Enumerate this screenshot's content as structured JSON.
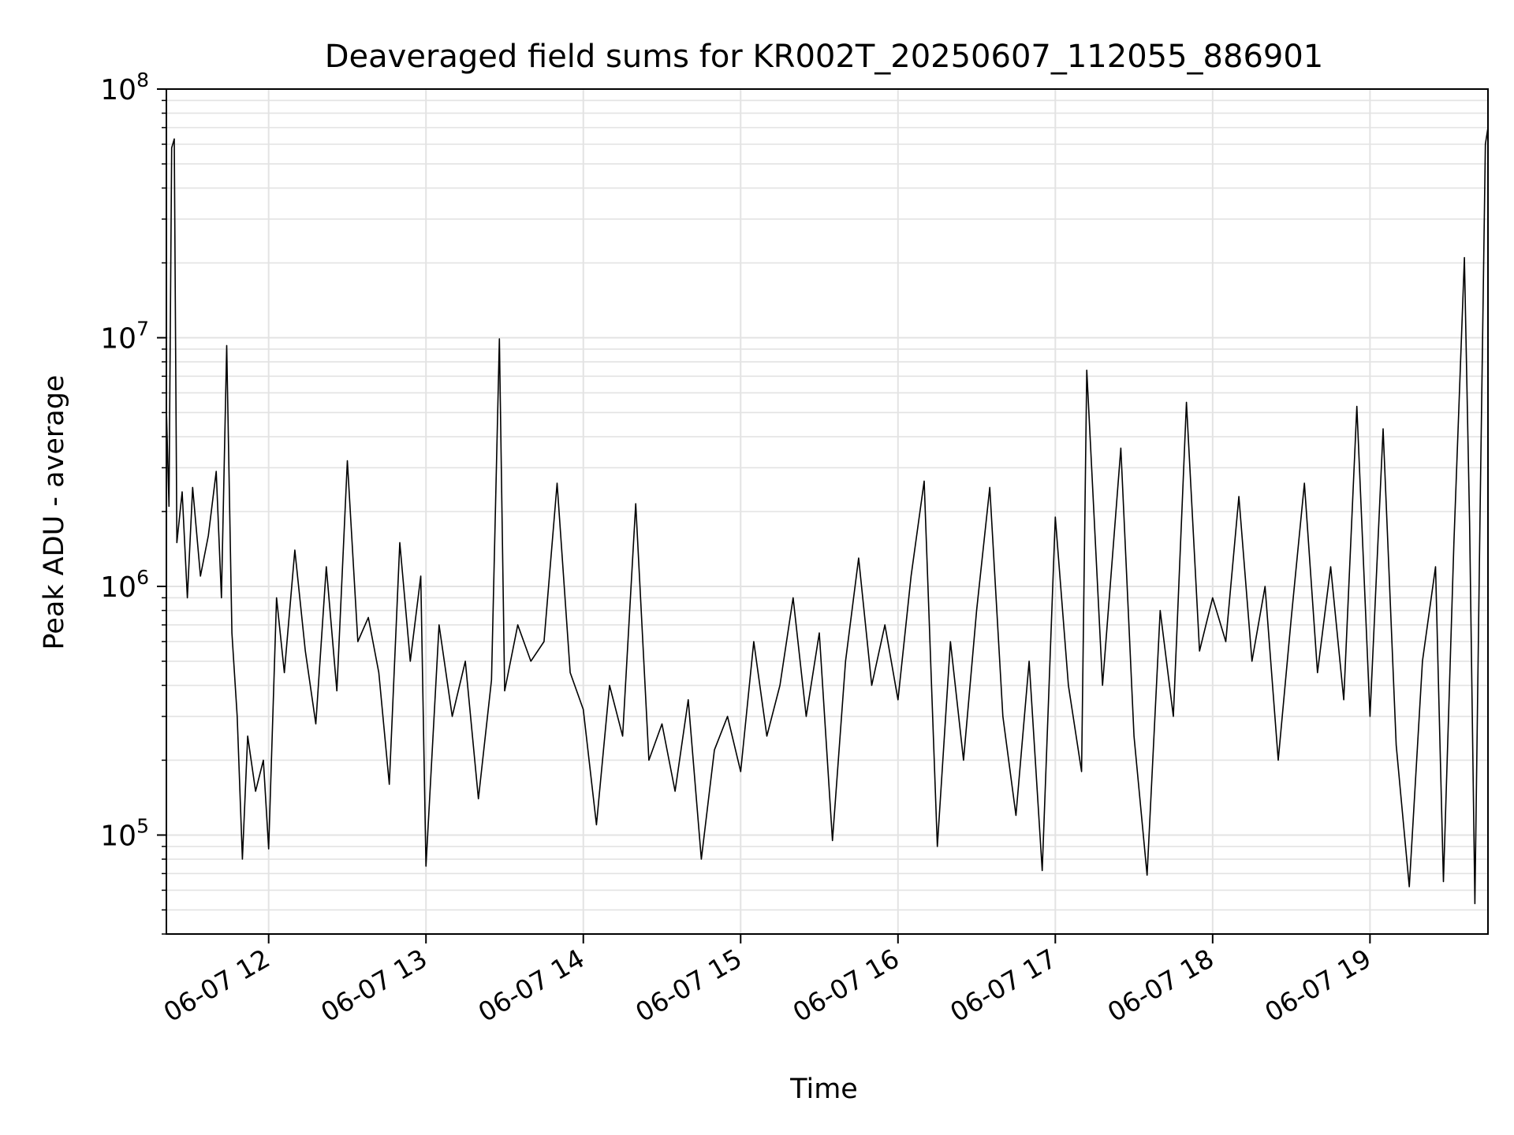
{
  "chart_data": {
    "type": "line",
    "title": "Deaveraged field sums for KR002T_20250607_112055_886901",
    "xlabel": "Time",
    "ylabel": "Peak ADU - average",
    "yscale": "log",
    "ylim": [
      40000,
      100000000
    ],
    "xlim": [
      "2025-06-07T11:21",
      "2025-06-07T19:45"
    ],
    "grid": true,
    "line_color": "#000000",
    "x_ticks": [
      {
        "value": "2025-06-07T12:00",
        "label": "06-07 12"
      },
      {
        "value": "2025-06-07T13:00",
        "label": "06-07 13"
      },
      {
        "value": "2025-06-07T14:00",
        "label": "06-07 14"
      },
      {
        "value": "2025-06-07T15:00",
        "label": "06-07 15"
      },
      {
        "value": "2025-06-07T16:00",
        "label": "06-07 16"
      },
      {
        "value": "2025-06-07T17:00",
        "label": "06-07 17"
      },
      {
        "value": "2025-06-07T18:00",
        "label": "06-07 18"
      },
      {
        "value": "2025-06-07T19:00",
        "label": "06-07 19"
      }
    ],
    "y_ticks": [
      {
        "value": 100000,
        "base": "10",
        "exp": "5"
      },
      {
        "value": 1000000,
        "base": "10",
        "exp": "6"
      },
      {
        "value": 10000000,
        "base": "10",
        "exp": "7"
      },
      {
        "value": 100000000,
        "base": "10",
        "exp": "8"
      }
    ],
    "series": [
      {
        "points": [
          [
            "2025-06-07T11:21",
            5200000
          ],
          [
            "2025-06-07T11:22",
            2100000
          ],
          [
            "2025-06-07T11:23",
            58000000
          ],
          [
            "2025-06-07T11:24",
            63000000
          ],
          [
            "2025-06-07T11:25",
            1500000
          ],
          [
            "2025-06-07T11:27",
            2400000
          ],
          [
            "2025-06-07T11:29",
            900000
          ],
          [
            "2025-06-07T11:31",
            2500000
          ],
          [
            "2025-06-07T11:34",
            1100000
          ],
          [
            "2025-06-07T11:37",
            1600000
          ],
          [
            "2025-06-07T11:40",
            2900000
          ],
          [
            "2025-06-07T11:42",
            900000
          ],
          [
            "2025-06-07T11:44",
            9300000
          ],
          [
            "2025-06-07T11:46",
            650000
          ],
          [
            "2025-06-07T11:48",
            300000
          ],
          [
            "2025-06-07T11:50",
            80000
          ],
          [
            "2025-06-07T11:52",
            250000
          ],
          [
            "2025-06-07T11:55",
            150000
          ],
          [
            "2025-06-07T11:58",
            200000
          ],
          [
            "2025-06-07T12:00",
            88000
          ],
          [
            "2025-06-07T12:03",
            900000
          ],
          [
            "2025-06-07T12:06",
            450000
          ],
          [
            "2025-06-07T12:10",
            1400000
          ],
          [
            "2025-06-07T12:14",
            550000
          ],
          [
            "2025-06-07T12:18",
            280000
          ],
          [
            "2025-06-07T12:22",
            1200000
          ],
          [
            "2025-06-07T12:26",
            380000
          ],
          [
            "2025-06-07T12:30",
            3200000
          ],
          [
            "2025-06-07T12:34",
            600000
          ],
          [
            "2025-06-07T12:38",
            750000
          ],
          [
            "2025-06-07T12:42",
            450000
          ],
          [
            "2025-06-07T12:46",
            160000
          ],
          [
            "2025-06-07T12:50",
            1500000
          ],
          [
            "2025-06-07T12:54",
            500000
          ],
          [
            "2025-06-07T12:58",
            1100000
          ],
          [
            "2025-06-07T13:00",
            75000
          ],
          [
            "2025-06-07T13:05",
            700000
          ],
          [
            "2025-06-07T13:10",
            300000
          ],
          [
            "2025-06-07T13:15",
            500000
          ],
          [
            "2025-06-07T13:20",
            140000
          ],
          [
            "2025-06-07T13:25",
            420000
          ],
          [
            "2025-06-07T13:28",
            9900000
          ],
          [
            "2025-06-07T13:30",
            380000
          ],
          [
            "2025-06-07T13:35",
            700000
          ],
          [
            "2025-06-07T13:40",
            500000
          ],
          [
            "2025-06-07T13:45",
            600000
          ],
          [
            "2025-06-07T13:50",
            2600000
          ],
          [
            "2025-06-07T13:55",
            450000
          ],
          [
            "2025-06-07T14:00",
            320000
          ],
          [
            "2025-06-07T14:05",
            110000
          ],
          [
            "2025-06-07T14:10",
            400000
          ],
          [
            "2025-06-07T14:15",
            250000
          ],
          [
            "2025-06-07T14:20",
            2150000
          ],
          [
            "2025-06-07T14:25",
            200000
          ],
          [
            "2025-06-07T14:30",
            280000
          ],
          [
            "2025-06-07T14:35",
            150000
          ],
          [
            "2025-06-07T14:40",
            350000
          ],
          [
            "2025-06-07T14:45",
            80000
          ],
          [
            "2025-06-07T14:50",
            220000
          ],
          [
            "2025-06-07T14:55",
            300000
          ],
          [
            "2025-06-07T15:00",
            180000
          ],
          [
            "2025-06-07T15:05",
            600000
          ],
          [
            "2025-06-07T15:10",
            250000
          ],
          [
            "2025-06-07T15:15",
            400000
          ],
          [
            "2025-06-07T15:20",
            900000
          ],
          [
            "2025-06-07T15:25",
            300000
          ],
          [
            "2025-06-07T15:30",
            650000
          ],
          [
            "2025-06-07T15:35",
            95000
          ],
          [
            "2025-06-07T15:40",
            500000
          ],
          [
            "2025-06-07T15:45",
            1300000
          ],
          [
            "2025-06-07T15:50",
            400000
          ],
          [
            "2025-06-07T15:55",
            700000
          ],
          [
            "2025-06-07T16:00",
            350000
          ],
          [
            "2025-06-07T16:05",
            1100000
          ],
          [
            "2025-06-07T16:10",
            2650000
          ],
          [
            "2025-06-07T16:15",
            90000
          ],
          [
            "2025-06-07T16:20",
            600000
          ],
          [
            "2025-06-07T16:25",
            200000
          ],
          [
            "2025-06-07T16:30",
            800000
          ],
          [
            "2025-06-07T16:35",
            2500000
          ],
          [
            "2025-06-07T16:40",
            300000
          ],
          [
            "2025-06-07T16:45",
            120000
          ],
          [
            "2025-06-07T16:50",
            500000
          ],
          [
            "2025-06-07T16:55",
            72000
          ],
          [
            "2025-06-07T17:00",
            1900000
          ],
          [
            "2025-06-07T17:05",
            400000
          ],
          [
            "2025-06-07T17:10",
            180000
          ],
          [
            "2025-06-07T17:12",
            7400000
          ],
          [
            "2025-06-07T17:18",
            400000
          ],
          [
            "2025-06-07T17:25",
            3600000
          ],
          [
            "2025-06-07T17:30",
            250000
          ],
          [
            "2025-06-07T17:35",
            69000
          ],
          [
            "2025-06-07T17:40",
            800000
          ],
          [
            "2025-06-07T17:45",
            300000
          ],
          [
            "2025-06-07T17:50",
            5500000
          ],
          [
            "2025-06-07T17:55",
            550000
          ],
          [
            "2025-06-07T18:00",
            900000
          ],
          [
            "2025-06-07T18:05",
            600000
          ],
          [
            "2025-06-07T18:10",
            2300000
          ],
          [
            "2025-06-07T18:15",
            500000
          ],
          [
            "2025-06-07T18:20",
            1000000
          ],
          [
            "2025-06-07T18:25",
            200000
          ],
          [
            "2025-06-07T18:30",
            750000
          ],
          [
            "2025-06-07T18:35",
            2600000
          ],
          [
            "2025-06-07T18:40",
            450000
          ],
          [
            "2025-06-07T18:45",
            1200000
          ],
          [
            "2025-06-07T18:50",
            350000
          ],
          [
            "2025-06-07T18:55",
            5300000
          ],
          [
            "2025-06-07T19:00",
            300000
          ],
          [
            "2025-06-07T19:05",
            4300000
          ],
          [
            "2025-06-07T19:10",
            230000
          ],
          [
            "2025-06-07T19:15",
            62000
          ],
          [
            "2025-06-07T19:20",
            500000
          ],
          [
            "2025-06-07T19:25",
            1200000
          ],
          [
            "2025-06-07T19:28",
            65000
          ],
          [
            "2025-06-07T19:32",
            1500000
          ],
          [
            "2025-06-07T19:36",
            21000000
          ],
          [
            "2025-06-07T19:38",
            1800000
          ],
          [
            "2025-06-07T19:40",
            53000
          ],
          [
            "2025-06-07T19:42",
            2000000
          ],
          [
            "2025-06-07T19:44",
            60000000
          ],
          [
            "2025-06-07T19:45",
            70000000
          ]
        ]
      }
    ]
  }
}
